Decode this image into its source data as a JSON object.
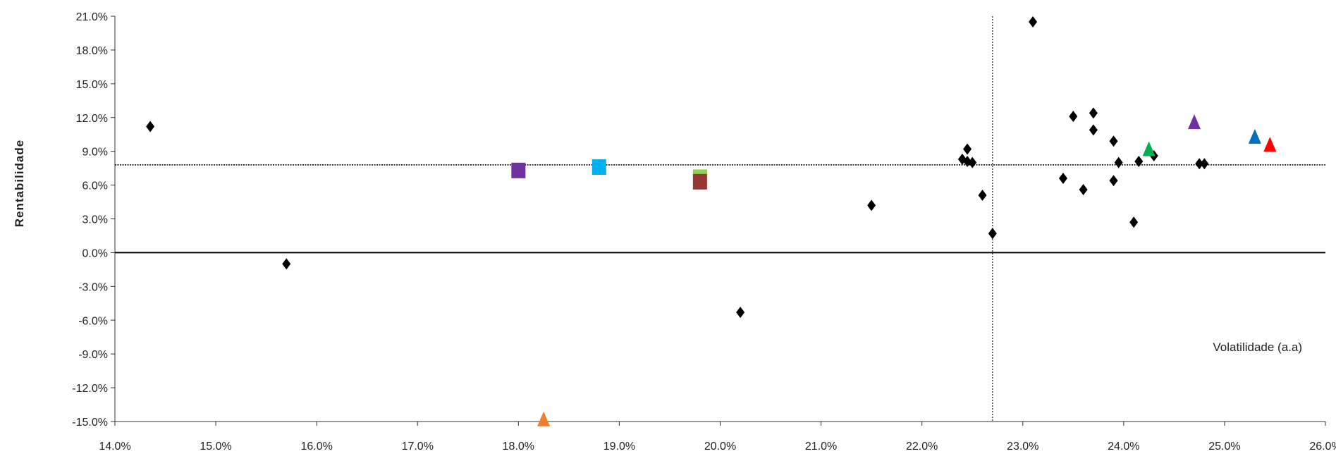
{
  "chart_data": {
    "type": "scatter",
    "title": "",
    "xlabel": "Volatilidade (a.a)",
    "ylabel": "Rentabilidade",
    "xlim": [
      14.0,
      26.0
    ],
    "ylim": [
      -15.0,
      21.0
    ],
    "x_ticks": [
      "14.0%",
      "15.0%",
      "16.0%",
      "17.0%",
      "18.0%",
      "19.0%",
      "20.0%",
      "21.0%",
      "22.0%",
      "23.0%",
      "24.0%",
      "25.0%",
      "26.0%"
    ],
    "y_ticks": [
      "21.0%",
      "18.0%",
      "15.0%",
      "12.0%",
      "9.0%",
      "6.0%",
      "3.0%",
      "0.0%",
      "-3.0%",
      "-6.0%",
      "-9.0%",
      "-12.0%",
      "-15.0%"
    ],
    "reference_lines": {
      "x": 22.7,
      "y": 7.8
    },
    "grid": false,
    "series": [
      {
        "marker": "diamond",
        "color": "#000000",
        "points": [
          {
            "x": 14.35,
            "y": 11.2
          },
          {
            "x": 15.7,
            "y": -1.0
          },
          {
            "x": 20.2,
            "y": -5.3
          },
          {
            "x": 21.5,
            "y": 4.2
          },
          {
            "x": 22.4,
            "y": 8.3
          },
          {
            "x": 22.45,
            "y": 9.2
          },
          {
            "x": 22.5,
            "y": 8.0
          },
          {
            "x": 22.45,
            "y": 8.1
          },
          {
            "x": 22.6,
            "y": 5.1
          },
          {
            "x": 22.7,
            "y": 1.7
          },
          {
            "x": 23.1,
            "y": 20.5
          },
          {
            "x": 23.4,
            "y": 6.6
          },
          {
            "x": 23.5,
            "y": 12.1
          },
          {
            "x": 23.6,
            "y": 5.6
          },
          {
            "x": 23.7,
            "y": 12.4
          },
          {
            "x": 23.7,
            "y": 10.9
          },
          {
            "x": 23.9,
            "y": 9.9
          },
          {
            "x": 23.95,
            "y": 8.0
          },
          {
            "x": 23.9,
            "y": 6.4
          },
          {
            "x": 24.15,
            "y": 8.1
          },
          {
            "x": 24.1,
            "y": 2.7
          },
          {
            "x": 24.3,
            "y": 8.6
          },
          {
            "x": 24.75,
            "y": 7.9
          },
          {
            "x": 24.8,
            "y": 7.9
          }
        ]
      },
      {
        "marker": "square",
        "color": "#7030a0",
        "points": [
          {
            "x": 18.0,
            "y": 7.3
          }
        ]
      },
      {
        "marker": "square",
        "color": "#00b0f0",
        "points": [
          {
            "x": 18.8,
            "y": 7.6
          }
        ]
      },
      {
        "marker": "square",
        "color": "#92d050",
        "points": [
          {
            "x": 19.8,
            "y": 6.7
          }
        ]
      },
      {
        "marker": "square",
        "color": "#953735",
        "points": [
          {
            "x": 19.8,
            "y": 6.3
          }
        ]
      },
      {
        "marker": "triangle",
        "color": "#ed7d31",
        "points": [
          {
            "x": 18.25,
            "y": -14.8
          }
        ]
      },
      {
        "marker": "triangle",
        "color": "#00b050",
        "points": [
          {
            "x": 24.25,
            "y": 9.2
          }
        ]
      },
      {
        "marker": "triangle",
        "color": "#7030a0",
        "points": [
          {
            "x": 24.7,
            "y": 11.6
          }
        ]
      },
      {
        "marker": "triangle",
        "color": "#0070c0",
        "points": [
          {
            "x": 25.3,
            "y": 10.3
          }
        ]
      },
      {
        "marker": "triangle",
        "color": "#ff0000",
        "points": [
          {
            "x": 25.45,
            "y": 9.6
          }
        ]
      }
    ]
  }
}
